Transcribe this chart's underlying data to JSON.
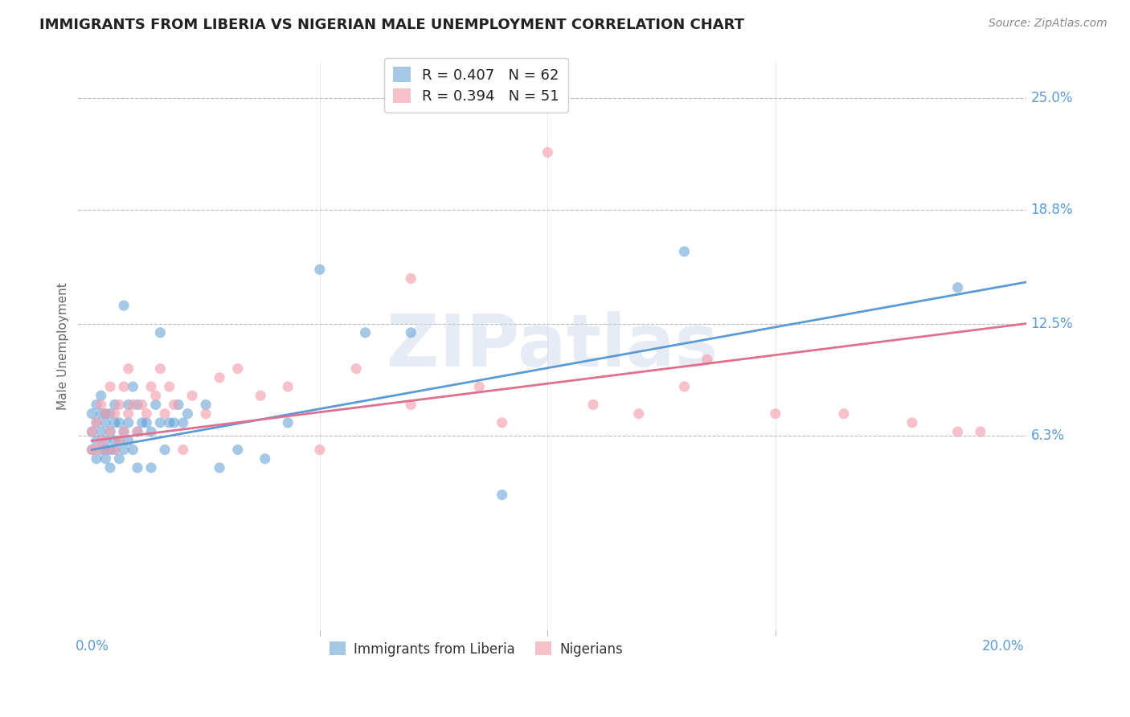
{
  "title": "IMMIGRANTS FROM LIBERIA VS NIGERIAN MALE UNEMPLOYMENT CORRELATION CHART",
  "source": "Source: ZipAtlas.com",
  "ylabel": "Male Unemployment",
  "x_tick_major": [
    0.0,
    0.2
  ],
  "x_tick_major_labels": [
    "0.0%",
    "20.0%"
  ],
  "x_tick_minor": [
    0.05,
    0.1,
    0.15
  ],
  "y_ticks": [
    0.063,
    0.125,
    0.188,
    0.25
  ],
  "y_tick_labels": [
    "6.3%",
    "12.5%",
    "18.8%",
    "25.0%"
  ],
  "xlim": [
    -0.003,
    0.205
  ],
  "ylim": [
    -0.045,
    0.27
  ],
  "blue_color": "#5B9BD5",
  "pink_color": "#F4A0B0",
  "pink_line_color": "#E07090",
  "blue_R": 0.407,
  "blue_N": 62,
  "pink_R": 0.394,
  "pink_N": 51,
  "legend_label_blue": "Immigrants from Liberia",
  "legend_label_pink": "Nigerians",
  "blue_line_start_y": 0.055,
  "blue_line_end_y": 0.148,
  "pink_line_start_y": 0.06,
  "pink_line_end_y": 0.125,
  "blue_scatter_x": [
    0.0,
    0.0,
    0.0,
    0.001,
    0.001,
    0.001,
    0.001,
    0.002,
    0.002,
    0.002,
    0.002,
    0.003,
    0.003,
    0.003,
    0.003,
    0.003,
    0.004,
    0.004,
    0.004,
    0.004,
    0.005,
    0.005,
    0.005,
    0.005,
    0.006,
    0.006,
    0.006,
    0.007,
    0.007,
    0.007,
    0.008,
    0.008,
    0.008,
    0.009,
    0.009,
    0.01,
    0.01,
    0.01,
    0.011,
    0.012,
    0.013,
    0.013,
    0.014,
    0.015,
    0.015,
    0.016,
    0.017,
    0.018,
    0.019,
    0.02,
    0.021,
    0.025,
    0.028,
    0.032,
    0.038,
    0.043,
    0.05,
    0.06,
    0.07,
    0.09,
    0.13,
    0.19
  ],
  "blue_scatter_y": [
    0.055,
    0.065,
    0.075,
    0.05,
    0.06,
    0.07,
    0.08,
    0.055,
    0.065,
    0.075,
    0.085,
    0.05,
    0.055,
    0.06,
    0.07,
    0.075,
    0.045,
    0.055,
    0.065,
    0.075,
    0.055,
    0.06,
    0.07,
    0.08,
    0.05,
    0.06,
    0.07,
    0.055,
    0.065,
    0.135,
    0.06,
    0.07,
    0.08,
    0.055,
    0.09,
    0.045,
    0.065,
    0.08,
    0.07,
    0.07,
    0.045,
    0.065,
    0.08,
    0.07,
    0.12,
    0.055,
    0.07,
    0.07,
    0.08,
    0.07,
    0.075,
    0.08,
    0.045,
    0.055,
    0.05,
    0.07,
    0.155,
    0.12,
    0.12,
    0.03,
    0.165,
    0.145
  ],
  "pink_scatter_x": [
    0.0,
    0.0,
    0.001,
    0.001,
    0.002,
    0.002,
    0.003,
    0.003,
    0.004,
    0.004,
    0.005,
    0.005,
    0.006,
    0.006,
    0.007,
    0.007,
    0.008,
    0.008,
    0.009,
    0.01,
    0.011,
    0.012,
    0.013,
    0.014,
    0.015,
    0.016,
    0.017,
    0.018,
    0.02,
    0.022,
    0.025,
    0.028,
    0.032,
    0.037,
    0.043,
    0.05,
    0.058,
    0.07,
    0.085,
    0.1,
    0.12,
    0.135,
    0.15,
    0.165,
    0.18,
    0.19,
    0.195,
    0.07,
    0.09,
    0.11,
    0.13
  ],
  "pink_scatter_y": [
    0.055,
    0.065,
    0.055,
    0.07,
    0.06,
    0.08,
    0.055,
    0.075,
    0.065,
    0.09,
    0.055,
    0.075,
    0.06,
    0.08,
    0.065,
    0.09,
    0.075,
    0.1,
    0.08,
    0.065,
    0.08,
    0.075,
    0.09,
    0.085,
    0.1,
    0.075,
    0.09,
    0.08,
    0.055,
    0.085,
    0.075,
    0.095,
    0.1,
    0.085,
    0.09,
    0.055,
    0.1,
    0.08,
    0.09,
    0.22,
    0.075,
    0.105,
    0.075,
    0.075,
    0.07,
    0.065,
    0.065,
    0.15,
    0.07,
    0.08,
    0.09
  ]
}
